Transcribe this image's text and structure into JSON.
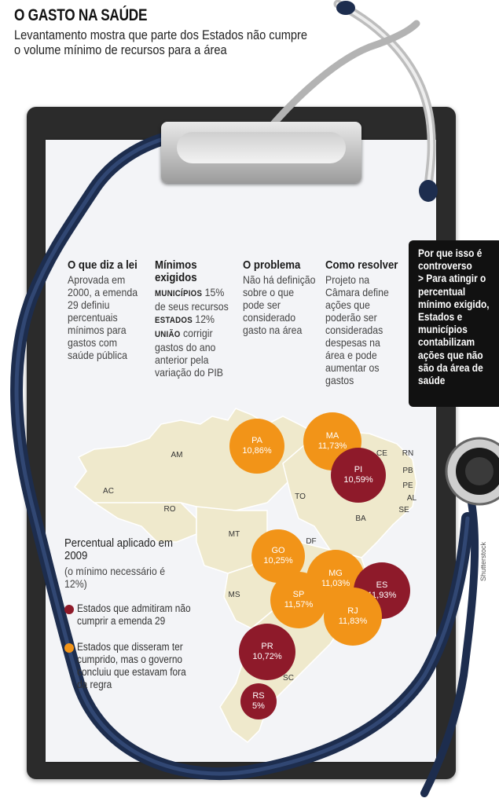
{
  "header": {
    "title": "O GASTO NA SAÚDE",
    "subtitle": "Levantamento mostra que parte dos Estados não cumpre o volume mínimo de recursos para a área"
  },
  "columns": {
    "lei": {
      "head": "O que diz a lei",
      "body": "Aprovada em 2000, a emenda 29 definiu percentuais mínimos para gastos com saúde pública"
    },
    "minimos": {
      "head": "Mínimos exigidos",
      "mun_label": "MUNICÍPIOS",
      "mun_value": "15% de seus recursos",
      "est_label": "ESTADOS",
      "est_value": "12%",
      "uni_label": "UNIÃO",
      "uni_value": "corrigir gastos do ano anterior pela variação do PIB"
    },
    "problema": {
      "head": "O problema",
      "body": "Não há definição sobre o que pode ser considerado gasto na área"
    },
    "resolver": {
      "head": "Como resolver",
      "body": "Projeto na Câmara define ações que poderão ser consideradas despesas na área e pode aumentar os gastos"
    }
  },
  "sidebar": {
    "head": "Por que isso é controverso",
    "body": "> Para atingir o percentual mínimo exigido, Estados e municípios contabilizam ações que não são da área de saúde"
  },
  "map": {
    "labels": [
      "AM",
      "AC",
      "RO",
      "TO",
      "MT",
      "DF",
      "MS",
      "BA",
      "CE",
      "RN",
      "PB",
      "PE",
      "AL",
      "SE",
      "SC"
    ],
    "bubbles": [
      {
        "uf": "PA",
        "value": "10,86%",
        "group": "orange"
      },
      {
        "uf": "MA",
        "value": "11,73%",
        "group": "orange"
      },
      {
        "uf": "PI",
        "value": "10,59%",
        "group": "red"
      },
      {
        "uf": "GO",
        "value": "10,25%",
        "group": "orange"
      },
      {
        "uf": "MG",
        "value": "11,03%",
        "group": "orange"
      },
      {
        "uf": "ES",
        "value": "11,93%",
        "group": "red"
      },
      {
        "uf": "SP",
        "value": "11,57%",
        "group": "orange"
      },
      {
        "uf": "RJ",
        "value": "11,83%",
        "group": "orange"
      },
      {
        "uf": "PR",
        "value": "10,72%",
        "group": "red"
      },
      {
        "uf": "RS",
        "value": "5%",
        "group": "red"
      }
    ]
  },
  "legend": {
    "title": "Percentual aplicado em 2009",
    "note": "(o mínimo necessário é 12%)",
    "red_text": "Estados que admitiram não cumprir a emenda 29",
    "orange_text": "Estados que disseram ter cumprido, mas o governo concluiu que estavam fora da regra",
    "red_color": "#8e1a2a",
    "orange_color": "#f29418"
  },
  "credit": "Shutterstock"
}
